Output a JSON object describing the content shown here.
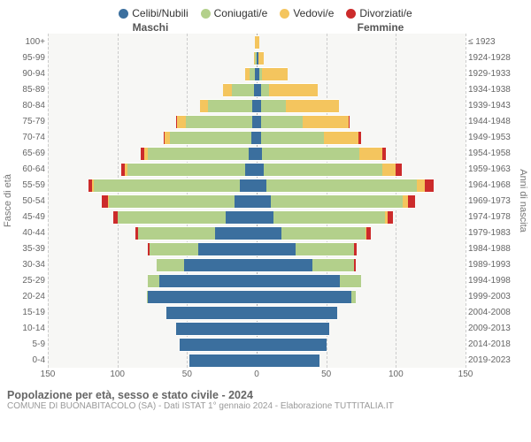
{
  "legend": [
    {
      "label": "Celibi/Nubili",
      "color": "#3b6f9e"
    },
    {
      "label": "Coniugati/e",
      "color": "#b3d08b"
    },
    {
      "label": "Vedovi/e",
      "color": "#f4c55e"
    },
    {
      "label": "Divorziati/e",
      "color": "#cc2b2b"
    }
  ],
  "headers": {
    "left": "Maschi",
    "right": "Femmine"
  },
  "y_left_label": "Fasce di età",
  "y_right_label": "Anni di nascita",
  "age_groups": [
    "100+",
    "95-99",
    "90-94",
    "85-89",
    "80-84",
    "75-79",
    "70-74",
    "65-69",
    "60-64",
    "55-59",
    "50-54",
    "45-49",
    "40-44",
    "35-39",
    "30-34",
    "25-29",
    "20-24",
    "15-19",
    "10-14",
    "5-9",
    "0-4"
  ],
  "birth_years": [
    "≤ 1923",
    "1924-1928",
    "1929-1933",
    "1934-1938",
    "1939-1943",
    "1944-1948",
    "1949-1953",
    "1954-1958",
    "1959-1963",
    "1964-1968",
    "1969-1973",
    "1974-1978",
    "1979-1983",
    "1984-1988",
    "1989-1993",
    "1994-1998",
    "1999-2003",
    "2004-2008",
    "2009-2013",
    "2014-2018",
    "2019-2023"
  ],
  "x_ticks": [
    150,
    100,
    50,
    0,
    50,
    100,
    150
  ],
  "x_max": 150,
  "colors": {
    "celibi": "#3b6f9e",
    "coniugati": "#b3d08b",
    "vedovi": "#f4c55e",
    "divorziati": "#cc2b2b",
    "bg": "#f7f7f5",
    "grid": "#cccccc"
  },
  "data": [
    {
      "m": {
        "c": 0,
        "co": 0,
        "v": 1,
        "d": 0
      },
      "f": {
        "c": 0,
        "co": 0,
        "v": 2,
        "d": 0
      }
    },
    {
      "m": {
        "c": 0,
        "co": 1,
        "v": 1,
        "d": 0
      },
      "f": {
        "c": 1,
        "co": 0,
        "v": 4,
        "d": 0
      }
    },
    {
      "m": {
        "c": 1,
        "co": 4,
        "v": 3,
        "d": 0
      },
      "f": {
        "c": 2,
        "co": 2,
        "v": 18,
        "d": 0
      }
    },
    {
      "m": {
        "c": 2,
        "co": 16,
        "v": 6,
        "d": 0
      },
      "f": {
        "c": 3,
        "co": 6,
        "v": 35,
        "d": 0
      }
    },
    {
      "m": {
        "c": 3,
        "co": 32,
        "v": 6,
        "d": 0
      },
      "f": {
        "c": 3,
        "co": 18,
        "v": 38,
        "d": 0
      }
    },
    {
      "m": {
        "c": 3,
        "co": 48,
        "v": 6,
        "d": 1
      },
      "f": {
        "c": 3,
        "co": 30,
        "v": 33,
        "d": 1
      }
    },
    {
      "m": {
        "c": 4,
        "co": 58,
        "v": 4,
        "d": 1
      },
      "f": {
        "c": 3,
        "co": 45,
        "v": 25,
        "d": 2
      }
    },
    {
      "m": {
        "c": 6,
        "co": 72,
        "v": 3,
        "d": 2
      },
      "f": {
        "c": 4,
        "co": 70,
        "v": 16,
        "d": 3
      }
    },
    {
      "m": {
        "c": 8,
        "co": 85,
        "v": 2,
        "d": 2
      },
      "f": {
        "c": 5,
        "co": 85,
        "v": 10,
        "d": 4
      }
    },
    {
      "m": {
        "c": 12,
        "co": 105,
        "v": 1,
        "d": 3
      },
      "f": {
        "c": 7,
        "co": 108,
        "v": 6,
        "d": 6
      }
    },
    {
      "m": {
        "c": 16,
        "co": 90,
        "v": 1,
        "d": 4
      },
      "f": {
        "c": 10,
        "co": 95,
        "v": 4,
        "d": 5
      }
    },
    {
      "m": {
        "c": 22,
        "co": 78,
        "v": 0,
        "d": 3
      },
      "f": {
        "c": 12,
        "co": 80,
        "v": 2,
        "d": 4
      }
    },
    {
      "m": {
        "c": 30,
        "co": 55,
        "v": 0,
        "d": 2
      },
      "f": {
        "c": 18,
        "co": 60,
        "v": 1,
        "d": 3
      }
    },
    {
      "m": {
        "c": 42,
        "co": 35,
        "v": 0,
        "d": 1
      },
      "f": {
        "c": 28,
        "co": 42,
        "v": 0,
        "d": 2
      }
    },
    {
      "m": {
        "c": 52,
        "co": 20,
        "v": 0,
        "d": 0
      },
      "f": {
        "c": 40,
        "co": 30,
        "v": 0,
        "d": 1
      }
    },
    {
      "m": {
        "c": 70,
        "co": 8,
        "v": 0,
        "d": 0
      },
      "f": {
        "c": 60,
        "co": 15,
        "v": 0,
        "d": 0
      }
    },
    {
      "m": {
        "c": 78,
        "co": 1,
        "v": 0,
        "d": 0
      },
      "f": {
        "c": 68,
        "co": 3,
        "v": 0,
        "d": 0
      }
    },
    {
      "m": {
        "c": 65,
        "co": 0,
        "v": 0,
        "d": 0
      },
      "f": {
        "c": 58,
        "co": 0,
        "v": 0,
        "d": 0
      }
    },
    {
      "m": {
        "c": 58,
        "co": 0,
        "v": 0,
        "d": 0
      },
      "f": {
        "c": 52,
        "co": 0,
        "v": 0,
        "d": 0
      }
    },
    {
      "m": {
        "c": 55,
        "co": 0,
        "v": 0,
        "d": 0
      },
      "f": {
        "c": 50,
        "co": 0,
        "v": 0,
        "d": 0
      }
    },
    {
      "m": {
        "c": 48,
        "co": 0,
        "v": 0,
        "d": 0
      },
      "f": {
        "c": 45,
        "co": 0,
        "v": 0,
        "d": 0
      }
    }
  ],
  "footer": {
    "title": "Popolazione per età, sesso e stato civile - 2024",
    "subtitle": "COMUNE DI BUONABITACOLO (SA) - Dati ISTAT 1° gennaio 2024 - Elaborazione TUTTITALIA.IT"
  }
}
